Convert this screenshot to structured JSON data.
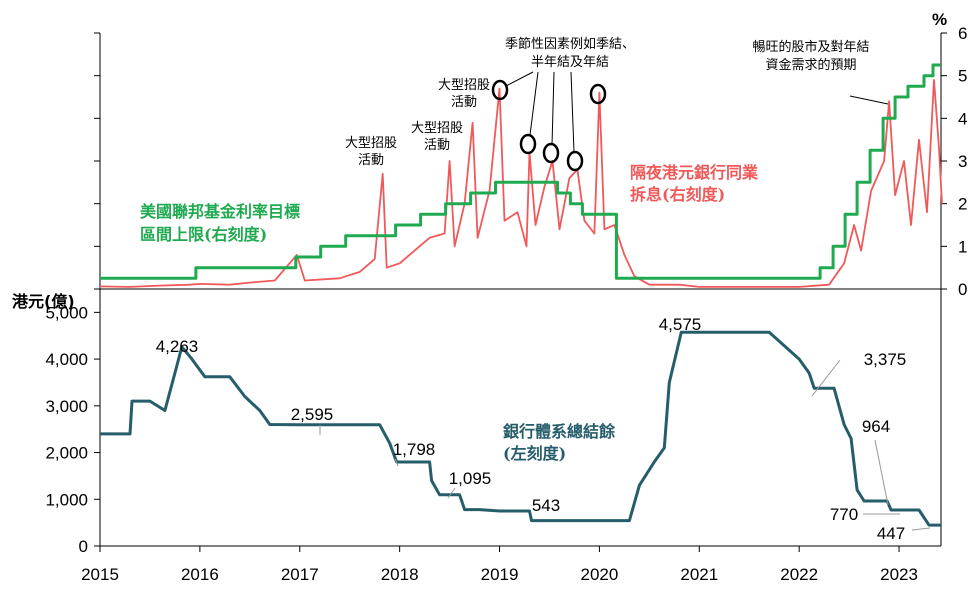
{
  "chart_data": [
    {
      "type": "line",
      "y_right_ticks": [
        "0",
        "1",
        "2",
        "3",
        "4",
        "5",
        "6"
      ],
      "y_right_unit": "%",
      "ylim": [
        0,
        6
      ],
      "series": [
        {
          "name_lines": [
            "美國聯邦基金利率目標",
            "區間上限(右刻度)"
          ],
          "color": "#1faa50",
          "step": true,
          "points": [
            [
              2015.0,
              0.25
            ],
            [
              2015.96,
              0.25
            ],
            [
              2015.96,
              0.5
            ],
            [
              2016.96,
              0.5
            ],
            [
              2016.96,
              0.75
            ],
            [
              2017.21,
              0.75
            ],
            [
              2017.21,
              1.0
            ],
            [
              2017.46,
              1.0
            ],
            [
              2017.46,
              1.25
            ],
            [
              2017.96,
              1.25
            ],
            [
              2017.96,
              1.5
            ],
            [
              2018.21,
              1.5
            ],
            [
              2018.21,
              1.75
            ],
            [
              2018.46,
              1.75
            ],
            [
              2018.46,
              2.0
            ],
            [
              2018.71,
              2.0
            ],
            [
              2018.71,
              2.25
            ],
            [
              2018.96,
              2.25
            ],
            [
              2018.96,
              2.5
            ],
            [
              2019.58,
              2.5
            ],
            [
              2019.58,
              2.25
            ],
            [
              2019.71,
              2.25
            ],
            [
              2019.71,
              2.0
            ],
            [
              2019.83,
              2.0
            ],
            [
              2019.83,
              1.75
            ],
            [
              2020.17,
              1.75
            ],
            [
              2020.17,
              0.25
            ],
            [
              2022.21,
              0.25
            ],
            [
              2022.21,
              0.5
            ],
            [
              2022.34,
              0.5
            ],
            [
              2022.34,
              1.0
            ],
            [
              2022.46,
              1.0
            ],
            [
              2022.46,
              1.75
            ],
            [
              2022.58,
              1.75
            ],
            [
              2022.58,
              2.5
            ],
            [
              2022.71,
              2.5
            ],
            [
              2022.71,
              3.25
            ],
            [
              2022.84,
              3.25
            ],
            [
              2022.84,
              4.0
            ],
            [
              2022.96,
              4.0
            ],
            [
              2022.96,
              4.5
            ],
            [
              2023.09,
              4.5
            ],
            [
              2023.09,
              4.75
            ],
            [
              2023.25,
              4.75
            ],
            [
              2023.25,
              5.0
            ],
            [
              2023.34,
              5.0
            ],
            [
              2023.34,
              5.25
            ],
            [
              2023.42,
              5.25
            ]
          ]
        },
        {
          "name_lines": [
            "隔夜港元銀行同業",
            "拆息(右刻度)"
          ],
          "color": "#f0595a",
          "step": false,
          "points": [
            [
              2015.0,
              0.06
            ],
            [
              2015.3,
              0.05
            ],
            [
              2015.6,
              0.08
            ],
            [
              2015.9,
              0.1
            ],
            [
              2016.0,
              0.12
            ],
            [
              2016.3,
              0.1
            ],
            [
              2016.5,
              0.15
            ],
            [
              2016.75,
              0.2
            ],
            [
              2016.97,
              0.8
            ],
            [
              2017.05,
              0.2
            ],
            [
              2017.4,
              0.25
            ],
            [
              2017.6,
              0.4
            ],
            [
              2017.75,
              0.7
            ],
            [
              2017.83,
              2.7
            ],
            [
              2017.87,
              0.5
            ],
            [
              2018.0,
              0.6
            ],
            [
              2018.15,
              0.9
            ],
            [
              2018.3,
              1.2
            ],
            [
              2018.45,
              1.3
            ],
            [
              2018.5,
              3.0
            ],
            [
              2018.55,
              1.0
            ],
            [
              2018.65,
              2.0
            ],
            [
              2018.73,
              3.9
            ],
            [
              2018.78,
              1.2
            ],
            [
              2018.9,
              2.3
            ],
            [
              2019.0,
              4.7
            ],
            [
              2019.05,
              1.6
            ],
            [
              2019.18,
              1.8
            ],
            [
              2019.27,
              1.0
            ],
            [
              2019.3,
              3.2
            ],
            [
              2019.36,
              1.5
            ],
            [
              2019.45,
              2.4
            ],
            [
              2019.53,
              3.0
            ],
            [
              2019.6,
              1.4
            ],
            [
              2019.7,
              2.6
            ],
            [
              2019.78,
              2.8
            ],
            [
              2019.85,
              1.6
            ],
            [
              2019.95,
              1.3
            ],
            [
              2020.0,
              4.6
            ],
            [
              2020.05,
              1.4
            ],
            [
              2020.15,
              1.5
            ],
            [
              2020.25,
              0.8
            ],
            [
              2020.35,
              0.3
            ],
            [
              2020.5,
              0.1
            ],
            [
              2020.8,
              0.1
            ],
            [
              2021.0,
              0.05
            ],
            [
              2021.5,
              0.05
            ],
            [
              2022.0,
              0.05
            ],
            [
              2022.3,
              0.1
            ],
            [
              2022.45,
              0.6
            ],
            [
              2022.55,
              1.5
            ],
            [
              2022.62,
              0.9
            ],
            [
              2022.72,
              2.3
            ],
            [
              2022.85,
              3.0
            ],
            [
              2022.9,
              4.4
            ],
            [
              2022.96,
              2.2
            ],
            [
              2023.05,
              3.0
            ],
            [
              2023.12,
              1.5
            ],
            [
              2023.2,
              3.5
            ],
            [
              2023.28,
              1.8
            ],
            [
              2023.35,
              4.9
            ],
            [
              2023.4,
              3.3
            ],
            [
              2023.43,
              2.0
            ]
          ]
        }
      ],
      "annotations": [
        {
          "lines": [
            "大型招股",
            "活動"
          ]
        },
        {
          "lines": [
            "大型招股",
            "活動"
          ]
        },
        {
          "lines": [
            "大型招股",
            "活動"
          ]
        },
        {
          "lines": [
            "季節性因素例如季結、",
            "半年結及年結"
          ]
        },
        {
          "lines": [
            "暢旺的股市及對年結",
            "資金需求的預期"
          ]
        }
      ]
    },
    {
      "type": "line",
      "y_left_title": "港元(億)",
      "y_left_ticks": [
        "0",
        "1,000",
        "2,000",
        "3,000",
        "4,000",
        "5,000"
      ],
      "ylim": [
        0,
        5500
      ],
      "x_ticks": [
        "2015",
        "2016",
        "2017",
        "2018",
        "2019",
        "2020",
        "2021",
        "2022",
        "2023"
      ],
      "xlim": [
        2015.0,
        2023.42
      ],
      "series": [
        {
          "name_lines": [
            "銀行體系總結餘",
            "(左刻度)"
          ],
          "color": "#265d6b",
          "step": false,
          "points": [
            [
              2015.0,
              2400
            ],
            [
              2015.3,
              2400
            ],
            [
              2015.32,
              3100
            ],
            [
              2015.5,
              3100
            ],
            [
              2015.65,
              2900
            ],
            [
              2015.75,
              3700
            ],
            [
              2015.82,
              4263
            ],
            [
              2015.92,
              4000
            ],
            [
              2016.05,
              3620
            ],
            [
              2016.3,
              3620
            ],
            [
              2016.45,
              3200
            ],
            [
              2016.6,
              2900
            ],
            [
              2016.7,
              2600
            ],
            [
              2017.0,
              2595
            ],
            [
              2017.4,
              2595
            ],
            [
              2017.8,
              2595
            ],
            [
              2017.9,
              2200
            ],
            [
              2017.97,
              1798
            ],
            [
              2018.3,
              1798
            ],
            [
              2018.32,
              1400
            ],
            [
              2018.4,
              1095
            ],
            [
              2018.6,
              1095
            ],
            [
              2018.65,
              780
            ],
            [
              2018.8,
              780
            ],
            [
              2019.0,
              750
            ],
            [
              2019.3,
              750
            ],
            [
              2019.32,
              543
            ],
            [
              2019.6,
              543
            ],
            [
              2020.0,
              543
            ],
            [
              2020.3,
              543
            ],
            [
              2020.4,
              1300
            ],
            [
              2020.55,
              1800
            ],
            [
              2020.65,
              2100
            ],
            [
              2020.7,
              3500
            ],
            [
              2020.82,
              4575
            ],
            [
              2021.3,
              4575
            ],
            [
              2021.7,
              4575
            ],
            [
              2022.0,
              4000
            ],
            [
              2022.1,
              3700
            ],
            [
              2022.15,
              3375
            ],
            [
              2022.35,
              3375
            ],
            [
              2022.45,
              2600
            ],
            [
              2022.52,
              2300
            ],
            [
              2022.58,
              1200
            ],
            [
              2022.65,
              964
            ],
            [
              2022.88,
              964
            ],
            [
              2022.92,
              770
            ],
            [
              2023.2,
              770
            ],
            [
              2023.3,
              447
            ],
            [
              2023.42,
              447
            ]
          ]
        }
      ],
      "data_labels": [
        "4,263",
        "2,595",
        "1,798",
        "1,095",
        "543",
        "4,575",
        "3,375",
        "964",
        "770",
        "447"
      ]
    }
  ]
}
